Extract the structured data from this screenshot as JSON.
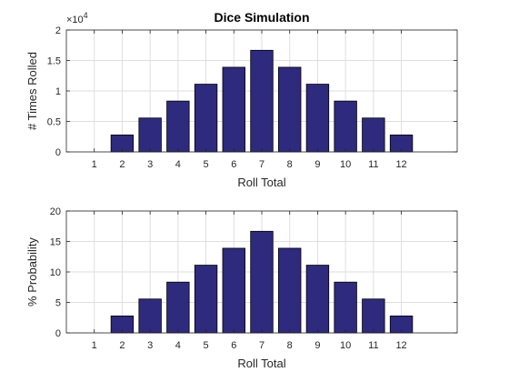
{
  "colors": {
    "bar_fill": "#2E2A7E",
    "bar_edge": "#000000",
    "grid": "#DFDFDF",
    "axis": "#262626"
  },
  "chart_data": [
    {
      "type": "bar",
      "title": "Dice Simulation",
      "xlabel": "Roll Total",
      "ylabel": "# Times Rolled",
      "y_exponent_base": "×10",
      "y_exponent_power": "4",
      "categories": [
        1,
        2,
        3,
        4,
        5,
        6,
        7,
        8,
        9,
        10,
        11,
        12
      ],
      "values": [
        0,
        2780,
        5560,
        8340,
        11110,
        13890,
        16670,
        13890,
        11110,
        8340,
        5560,
        2780
      ],
      "xlim": [
        0,
        14
      ],
      "ylim": [
        0,
        20000
      ],
      "yticks": [
        0,
        5000,
        10000,
        15000,
        20000
      ],
      "ytick_labels": [
        "0",
        "0.5",
        "1",
        "1.5",
        "2"
      ],
      "xticks": [
        1,
        2,
        3,
        4,
        5,
        6,
        7,
        8,
        9,
        10,
        11,
        12
      ],
      "grid": true,
      "legend": "none"
    },
    {
      "type": "bar",
      "title": "",
      "xlabel": "Roll Total",
      "ylabel": "% Probability",
      "categories": [
        1,
        2,
        3,
        4,
        5,
        6,
        7,
        8,
        9,
        10,
        11,
        12
      ],
      "values": [
        0,
        2.78,
        5.56,
        8.33,
        11.11,
        13.89,
        16.67,
        13.89,
        11.11,
        8.33,
        5.56,
        2.78
      ],
      "xlim": [
        0,
        14
      ],
      "ylim": [
        0,
        20
      ],
      "yticks": [
        0,
        5,
        10,
        15,
        20
      ],
      "ytick_labels": [
        "0",
        "5",
        "10",
        "15",
        "20"
      ],
      "xticks": [
        1,
        2,
        3,
        4,
        5,
        6,
        7,
        8,
        9,
        10,
        11,
        12
      ],
      "grid": true,
      "legend": "none"
    }
  ]
}
